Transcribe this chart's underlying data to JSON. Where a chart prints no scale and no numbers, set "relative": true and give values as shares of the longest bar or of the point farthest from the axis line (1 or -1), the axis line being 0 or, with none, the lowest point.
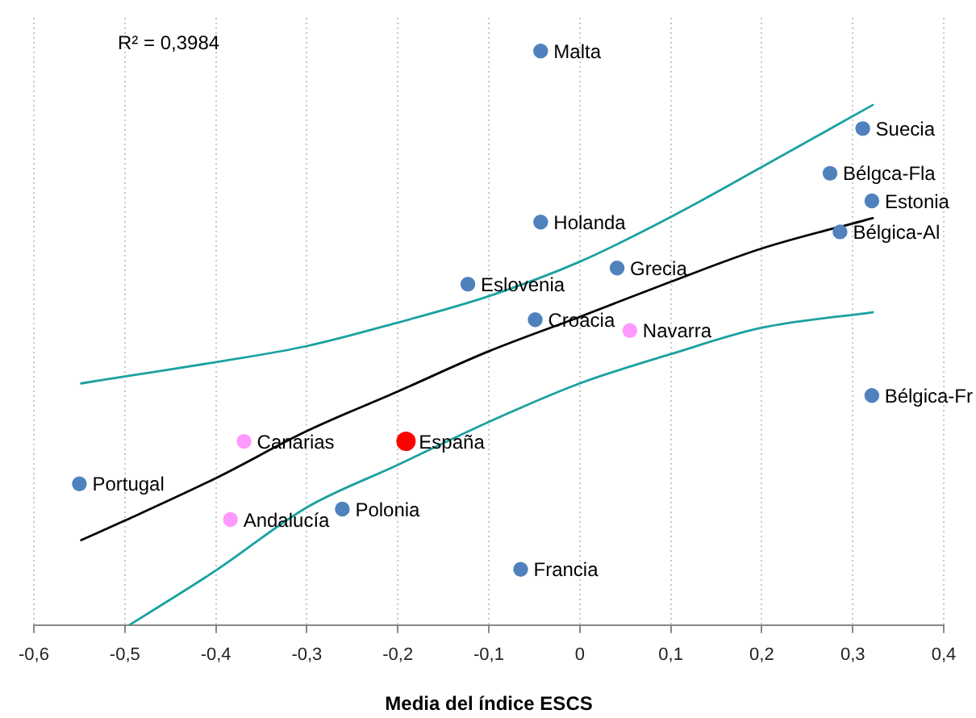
{
  "chart_data": {
    "type": "scatter",
    "xlabel": "Media del índice ESCS",
    "relative": true,
    "marker": "circle",
    "grid": "x",
    "xlim": [
      -0.6,
      0.4
    ],
    "xticks": [
      {
        "value": -0.6,
        "label": "-0,6"
      },
      {
        "value": -0.5,
        "label": "-0,5"
      },
      {
        "value": -0.4,
        "label": "-0,4"
      },
      {
        "value": -0.3,
        "label": "-0,3"
      },
      {
        "value": -0.2,
        "label": "-0,2"
      },
      {
        "value": -0.1,
        "label": "-0,1"
      },
      0,
      {
        "value": 0.1,
        "label": "0,1"
      },
      {
        "value": 0.2,
        "label": "0,2"
      },
      {
        "value": 0.3,
        "label": "0,3"
      },
      {
        "value": 0.4,
        "label": "0,4"
      }
    ],
    "series": [
      {
        "color": "#4f81bd",
        "x": [
          -0.043,
          0.311,
          0.275,
          0.321,
          0.286,
          -0.043,
          0.041,
          -0.123,
          -0.049,
          0.321,
          -0.55,
          -0.261,
          -0.065
        ],
        "values": [
          1,
          0.865,
          0.787,
          0.739,
          0.685,
          0.702,
          0.622,
          0.594,
          0.532,
          0.4,
          0.246,
          0.202,
          0.097
        ]
      },
      {
        "color": "#ff99ff",
        "x": [
          -0.369,
          0.055,
          -0.384
        ],
        "values": [
          0.32,
          0.513,
          0.184
        ]
      },
      {
        "color": "#ff0000",
        "x": [
          -0.191
        ],
        "values": [
          0.32
        ]
      },
      {
        "type": "line",
        "marker": "none",
        "color": "#000000",
        "x": [
          -0.548,
          -0.5,
          -0.4,
          -0.3,
          -0.2,
          -0.1,
          0,
          0.1,
          0.2,
          0.322
        ],
        "values": [
          0.148,
          0.182,
          0.256,
          0.338,
          0.407,
          0.477,
          0.537,
          0.598,
          0.656,
          0.709
        ]
      },
      {
        "type": "line",
        "marker": "none",
        "color": "#1ba1a1",
        "x": [
          -0.548,
          -0.5,
          -0.4,
          -0.3,
          -0.2,
          -0.1,
          0,
          0.1,
          0.2,
          0.322
        ],
        "values": [
          0.421,
          0.433,
          0.458,
          0.486,
          0.527,
          0.573,
          0.633,
          0.711,
          0.798,
          0.906
        ]
      },
      {
        "type": "line",
        "marker": "none",
        "color": "#1ba1a1",
        "x": [
          -0.495,
          -0.4,
          -0.3,
          -0.2,
          -0.1,
          0,
          0.1,
          0.2,
          0.322
        ],
        "values": [
          0,
          0.095,
          0.205,
          0.279,
          0.354,
          0.421,
          0.472,
          0.518,
          0.545
        ]
      }
    ],
    "annotations": [
      "R² = 0,3984",
      {
        "text": "Malta",
        "x": -0.043,
        "y": 1
      },
      {
        "text": "Suecia",
        "x": 0.311,
        "y": 0.865
      },
      {
        "text": "Bélgca-Fla",
        "x": 0.275,
        "y": 0.787
      },
      {
        "text": "Estonia",
        "x": 0.321,
        "y": 0.739
      },
      {
        "text": "Bélgica-Al",
        "x": 0.286,
        "y": 0.685
      },
      {
        "text": "Holanda",
        "x": -0.043,
        "y": 0.702
      },
      {
        "text": "Grecia",
        "x": 0.041,
        "y": 0.622
      },
      {
        "text": "Eslovenia",
        "x": -0.123,
        "y": 0.594
      },
      {
        "text": "Croacia",
        "x": -0.049,
        "y": 0.532
      },
      {
        "text": "Bélgica-Fr",
        "x": 0.321,
        "y": 0.4
      },
      {
        "text": "Portugal",
        "x": -0.55,
        "y": 0.246
      },
      {
        "text": "Polonia",
        "x": -0.261,
        "y": 0.202
      },
      {
        "text": "Francia",
        "x": -0.065,
        "y": 0.097
      },
      {
        "text": "Canarias",
        "x": -0.369,
        "y": 0.32
      },
      {
        "text": "Navarra",
        "x": 0.055,
        "y": 0.513
      },
      {
        "text": "Andalucía",
        "x": -0.384,
        "y": 0.184
      },
      {
        "text": "España",
        "x": -0.191,
        "y": 0.32
      }
    ]
  }
}
